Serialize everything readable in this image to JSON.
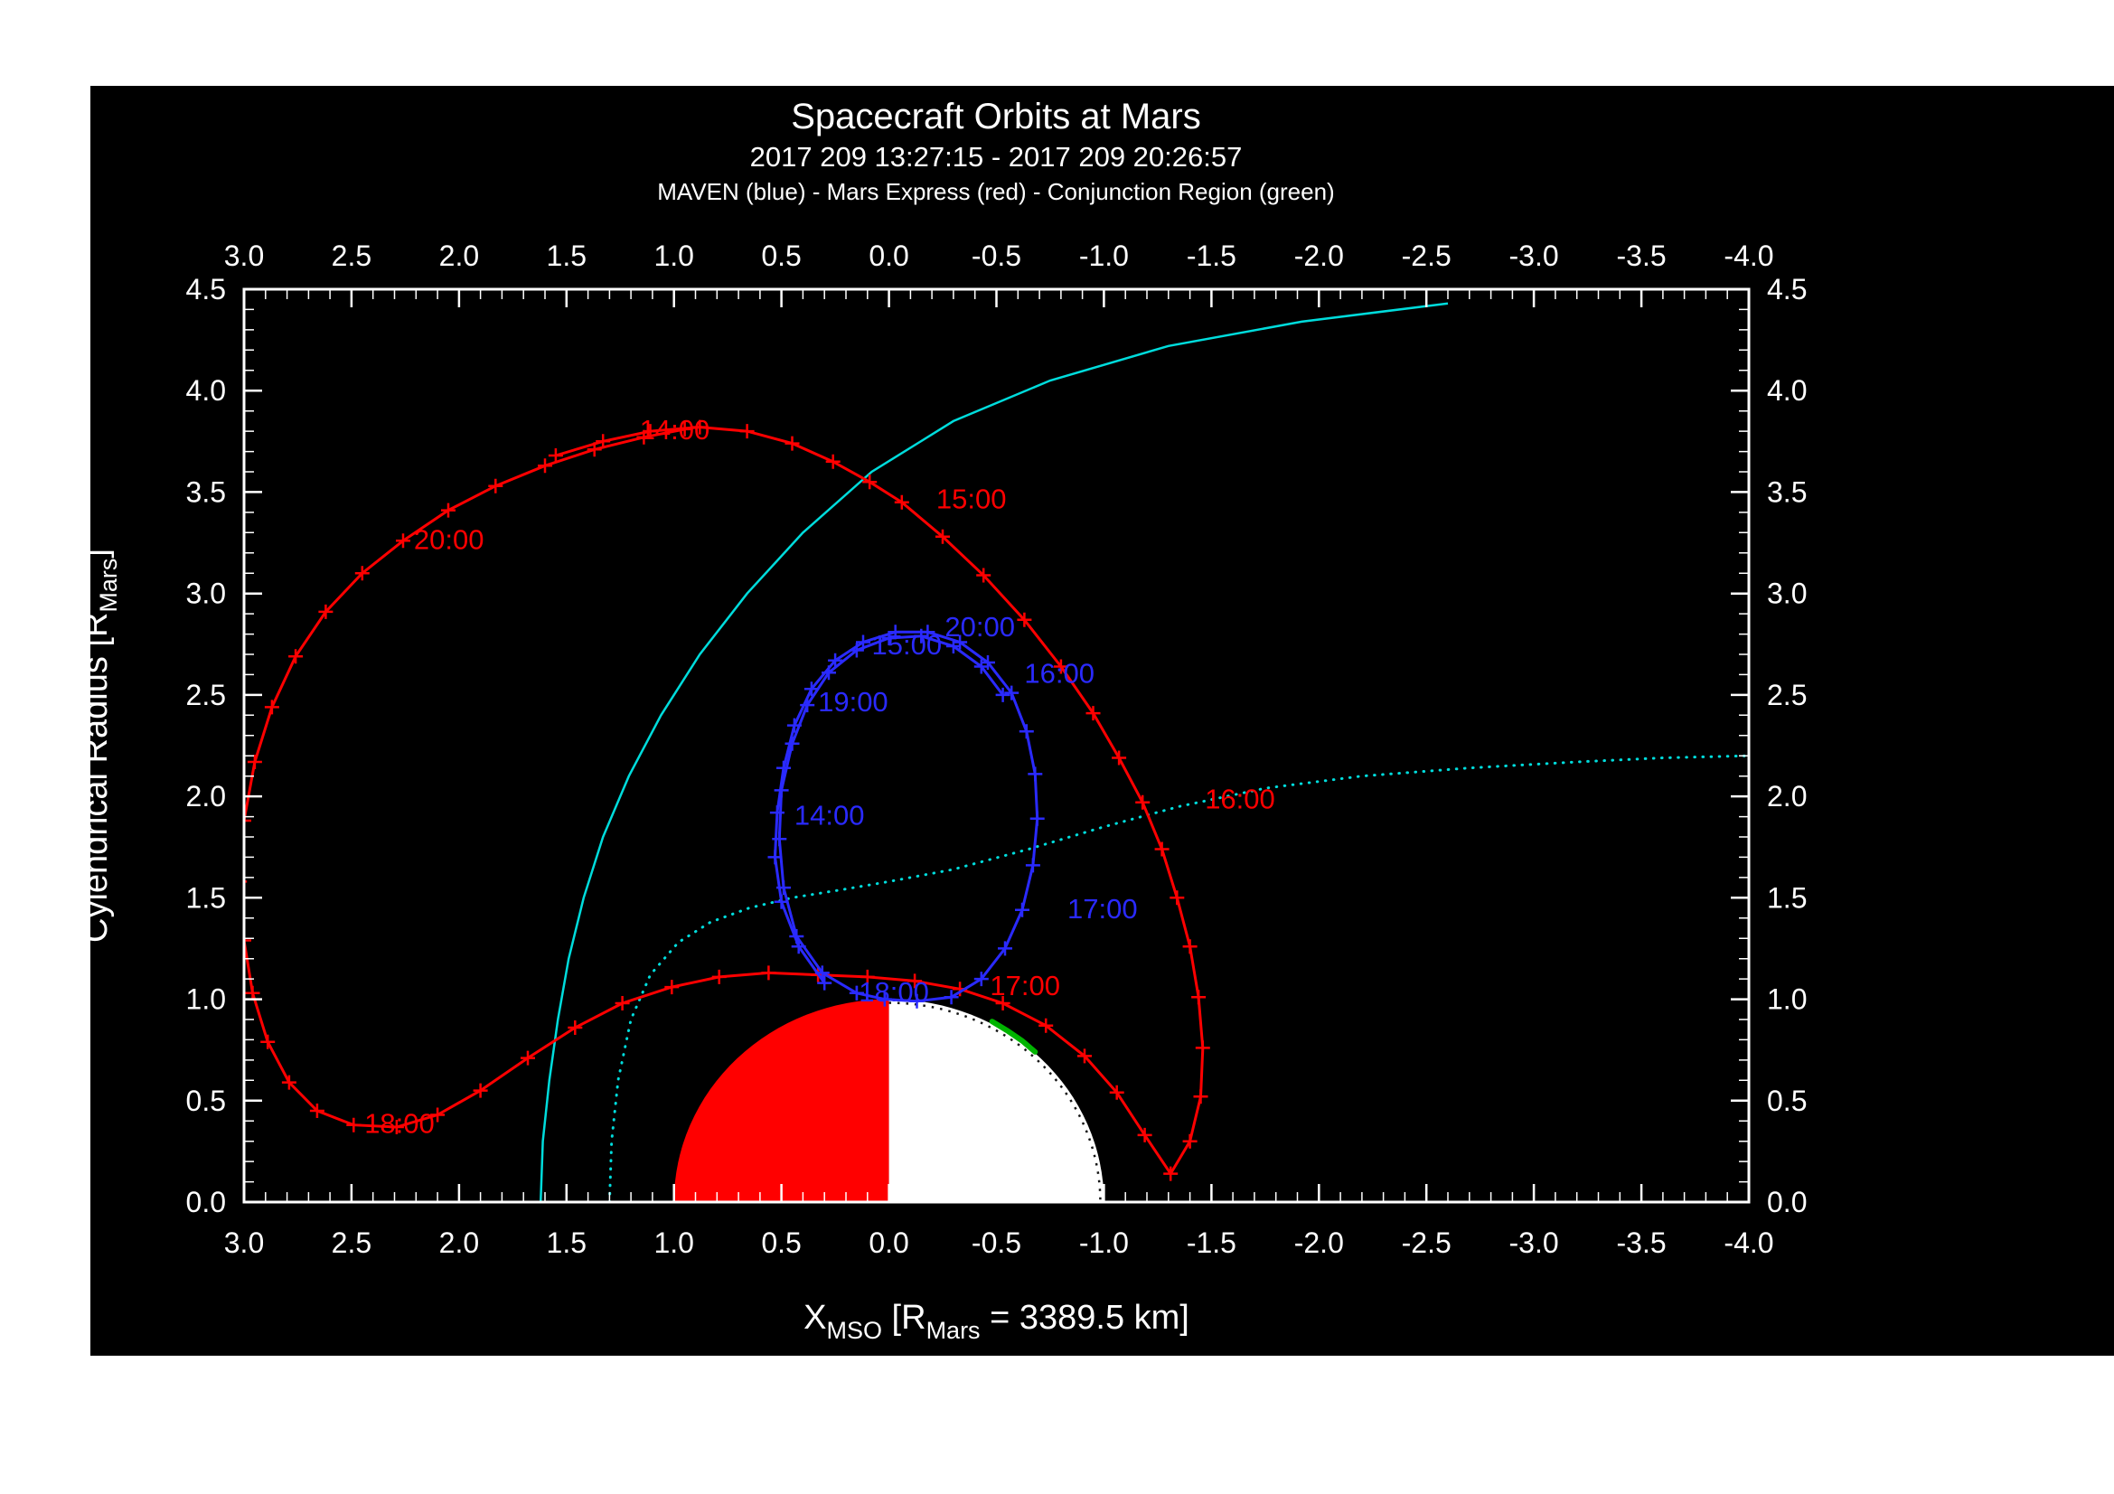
{
  "chart_data": {
    "type": "line",
    "title": "Spacecraft Orbits at Mars",
    "subtitle": "2017 209 13:27:15 - 2017 209 20:26:57",
    "legend_line": "MAVEN (blue) - Mars Express (red) - Conjunction Region (green)",
    "x_axis": {
      "label_parts": [
        [
          "X",
          "n"
        ],
        [
          "MSO",
          "s"
        ],
        [
          " [R",
          "n"
        ],
        [
          "Mars",
          "s"
        ],
        [
          " = 3389.5 km]",
          "n"
        ]
      ],
      "left": 3.0,
      "right": -4.0,
      "major_ticks": [
        3.0,
        2.5,
        2.0,
        1.5,
        1.0,
        0.5,
        0.0,
        -0.5,
        -1.0,
        -1.5,
        -2.0,
        -2.5,
        -3.0,
        -3.5,
        -4.0
      ],
      "minor_step": 0.1,
      "mirror": true
    },
    "y_axis": {
      "label_parts": [
        [
          "Cylendrical Radius [R",
          "n"
        ],
        [
          "Mars",
          "s"
        ],
        [
          "]",
          "n"
        ]
      ],
      "min": 0.0,
      "max": 4.5,
      "major_ticks": [
        0.0,
        0.5,
        1.0,
        1.5,
        2.0,
        2.5,
        3.0,
        3.5,
        4.0,
        4.5
      ],
      "minor_step": 0.1,
      "mirror": true
    },
    "colors": {
      "page": "#ffffff",
      "background": "#000000",
      "frame": "#ffffff",
      "maven": "#2a2aff",
      "mars_express": "#ff0000",
      "boundary": "#00dcdc",
      "conjunction": "#00b400",
      "mars_dayside": "#ff0000",
      "mars_nightside": "#ffffff"
    },
    "mars": {
      "center": [
        0,
        0
      ],
      "radius": 1.0
    },
    "series": [
      {
        "name": "bow-shock-line",
        "color": "boundary",
        "style": "solid",
        "width": 2.5,
        "markers": false,
        "points": [
          [
            1.62,
            0.0
          ],
          [
            1.61,
            0.3
          ],
          [
            1.58,
            0.6
          ],
          [
            1.54,
            0.9
          ],
          [
            1.49,
            1.2
          ],
          [
            1.42,
            1.5
          ],
          [
            1.33,
            1.8
          ],
          [
            1.21,
            2.1
          ],
          [
            1.06,
            2.4
          ],
          [
            0.88,
            2.7
          ],
          [
            0.66,
            3.0
          ],
          [
            0.4,
            3.3
          ],
          [
            0.08,
            3.6
          ],
          [
            -0.3,
            3.85
          ],
          [
            -0.75,
            4.05
          ],
          [
            -1.3,
            4.22
          ],
          [
            -1.92,
            4.34
          ],
          [
            -2.6,
            4.43
          ]
        ]
      },
      {
        "name": "boundary-line-dotted",
        "color": "boundary",
        "style": "dotted",
        "width": 3,
        "markers": false,
        "points": [
          [
            1.3,
            0.0
          ],
          [
            1.29,
            0.3
          ],
          [
            1.26,
            0.6
          ],
          [
            1.2,
            0.9
          ],
          [
            1.11,
            1.12
          ],
          [
            0.98,
            1.28
          ],
          [
            0.83,
            1.38
          ],
          [
            0.65,
            1.45
          ],
          [
            0.45,
            1.5
          ],
          [
            0.22,
            1.54
          ],
          [
            0.0,
            1.58
          ],
          [
            -0.3,
            1.64
          ],
          [
            -0.65,
            1.74
          ],
          [
            -1.0,
            1.85
          ],
          [
            -1.35,
            1.95
          ],
          [
            -1.75,
            2.04
          ],
          [
            -2.2,
            2.1
          ],
          [
            -2.7,
            2.14
          ],
          [
            -3.2,
            2.17
          ],
          [
            -3.6,
            2.19
          ],
          [
            -4.0,
            2.2
          ]
        ]
      },
      {
        "name": "mars-express-orbit",
        "color": "mars_express",
        "style": "solid",
        "width": 3,
        "markers": true,
        "points": [
          [
            1.55,
            3.68
          ],
          [
            1.33,
            3.75
          ],
          [
            1.11,
            3.8
          ],
          [
            0.88,
            3.82
          ],
          [
            0.66,
            3.8
          ],
          [
            0.45,
            3.74
          ],
          [
            0.26,
            3.65
          ],
          [
            0.09,
            3.55
          ],
          [
            -0.06,
            3.45
          ],
          [
            -0.25,
            3.28
          ],
          [
            -0.44,
            3.09
          ],
          [
            -0.63,
            2.87
          ],
          [
            -0.8,
            2.64
          ],
          [
            -0.95,
            2.41
          ],
          [
            -1.07,
            2.19
          ],
          [
            -1.18,
            1.97
          ],
          [
            -1.27,
            1.74
          ],
          [
            -1.34,
            1.5
          ],
          [
            -1.4,
            1.26
          ],
          [
            -1.44,
            1.01
          ],
          [
            -1.46,
            0.76
          ],
          [
            -1.45,
            0.52
          ],
          [
            -1.4,
            0.3
          ],
          [
            -1.31,
            0.14
          ],
          [
            -1.19,
            0.33
          ],
          [
            -1.06,
            0.54
          ],
          [
            -0.91,
            0.72
          ],
          [
            -0.73,
            0.87
          ],
          [
            -0.53,
            0.98
          ],
          [
            -0.33,
            1.05
          ],
          [
            -0.12,
            1.09
          ],
          [
            0.1,
            1.11
          ],
          [
            0.33,
            1.12
          ],
          [
            0.56,
            1.13
          ],
          [
            0.79,
            1.11
          ],
          [
            1.01,
            1.06
          ],
          [
            1.24,
            0.98
          ],
          [
            1.46,
            0.86
          ],
          [
            1.68,
            0.71
          ],
          [
            1.9,
            0.55
          ],
          [
            2.1,
            0.43
          ],
          [
            2.29,
            0.37
          ],
          [
            2.49,
            0.38
          ],
          [
            2.66,
            0.45
          ],
          [
            2.79,
            0.59
          ],
          [
            2.89,
            0.79
          ],
          [
            2.96,
            1.03
          ],
          [
            3.0,
            1.29
          ],
          [
            3.02,
            1.58
          ],
          [
            3.0,
            1.88
          ],
          [
            2.95,
            2.17
          ],
          [
            2.87,
            2.44
          ],
          [
            2.76,
            2.69
          ],
          [
            2.62,
            2.91
          ],
          [
            2.45,
            3.1
          ],
          [
            2.26,
            3.26
          ],
          [
            2.05,
            3.41
          ],
          [
            1.83,
            3.53
          ],
          [
            1.6,
            3.63
          ],
          [
            1.37,
            3.71
          ],
          [
            1.14,
            3.77
          ],
          [
            0.95,
            3.81
          ]
        ]
      },
      {
        "name": "maven-orbit-pass1",
        "color": "maven",
        "style": "solid",
        "width": 3,
        "markers": true,
        "points": [
          [
            0.3,
            1.08
          ],
          [
            0.42,
            1.26
          ],
          [
            0.5,
            1.48
          ],
          [
            0.53,
            1.7
          ],
          [
            0.52,
            1.92
          ],
          [
            0.49,
            2.14
          ],
          [
            0.44,
            2.35
          ],
          [
            0.36,
            2.53
          ],
          [
            0.25,
            2.67
          ],
          [
            0.12,
            2.76
          ],
          [
            -0.03,
            2.81
          ],
          [
            -0.18,
            2.81
          ],
          [
            -0.33,
            2.76
          ],
          [
            -0.46,
            2.66
          ],
          [
            -0.57,
            2.51
          ],
          [
            -0.64,
            2.32
          ],
          [
            -0.68,
            2.11
          ],
          [
            -0.69,
            1.89
          ],
          [
            -0.67,
            1.66
          ],
          [
            -0.62,
            1.44
          ],
          [
            -0.54,
            1.25
          ],
          [
            -0.43,
            1.1
          ],
          [
            -0.29,
            1.01
          ],
          [
            -0.13,
            0.99
          ],
          [
            0.02,
            1.0
          ],
          [
            0.15,
            1.03
          ]
        ]
      },
      {
        "name": "maven-orbit-pass2",
        "color": "maven",
        "style": "solid",
        "width": 3,
        "markers": true,
        "points": [
          [
            0.15,
            1.03
          ],
          [
            0.31,
            1.13
          ],
          [
            0.43,
            1.31
          ],
          [
            0.49,
            1.55
          ],
          [
            0.51,
            1.79
          ],
          [
            0.5,
            2.03
          ],
          [
            0.45,
            2.26
          ],
          [
            0.38,
            2.45
          ],
          [
            0.28,
            2.61
          ],
          [
            0.15,
            2.72
          ],
          [
            0.0,
            2.78
          ],
          [
            -0.15,
            2.79
          ],
          [
            -0.3,
            2.74
          ],
          [
            -0.43,
            2.64
          ],
          [
            -0.53,
            2.5
          ]
        ]
      },
      {
        "name": "conjunction-region",
        "color": "conjunction",
        "style": "solid",
        "width": 6,
        "markers": false,
        "points": [
          [
            -0.48,
            0.89
          ],
          [
            -0.55,
            0.845
          ],
          [
            -0.62,
            0.795
          ],
          [
            -0.68,
            0.74
          ]
        ]
      }
    ],
    "time_labels": [
      {
        "text": "14:00",
        "x": 1.16,
        "r": 3.76,
        "series": "mars_express"
      },
      {
        "text": "15:00",
        "x": -0.22,
        "r": 3.42,
        "series": "mars_express"
      },
      {
        "text": "16:00",
        "x": -1.47,
        "r": 1.94,
        "series": "mars_express"
      },
      {
        "text": "17:00",
        "x": -0.47,
        "r": 1.02,
        "series": "mars_express"
      },
      {
        "text": "18:00",
        "x": 2.44,
        "r": 0.34,
        "series": "mars_express"
      },
      {
        "text": "20:00",
        "x": 2.21,
        "r": 3.22,
        "series": "mars_express"
      },
      {
        "text": "14:00",
        "x": 0.44,
        "r": 1.86,
        "series": "maven"
      },
      {
        "text": "15:00",
        "x": 0.08,
        "r": 2.7,
        "series": "maven"
      },
      {
        "text": "16:00",
        "x": -0.63,
        "r": 2.56,
        "series": "maven"
      },
      {
        "text": "17:00",
        "x": -0.83,
        "r": 1.4,
        "series": "maven"
      },
      {
        "text": "18:00",
        "x": 0.14,
        "r": 0.99,
        "series": "maven"
      },
      {
        "text": "19:00",
        "x": 0.33,
        "r": 2.42,
        "series": "maven"
      },
      {
        "text": "20:00",
        "x": -0.26,
        "r": 2.79,
        "series": "maven"
      }
    ]
  }
}
